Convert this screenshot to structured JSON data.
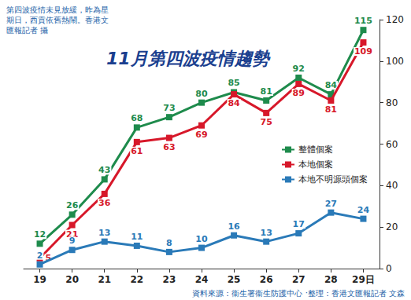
{
  "chart_data": {
    "type": "line",
    "title": "11月第四波疫情趨勢",
    "caption": "第四波疫情未見放緩，昨為星期日，西貢依舊熱鬧。香港文匯報記者 攝",
    "source": "資料來源：衞生署衞生防護中心 ‧整理：香港文匯報記者 文森",
    "categories": [
      "19",
      "20",
      "21",
      "22",
      "23",
      "24",
      "25",
      "26",
      "27",
      "28",
      "29日"
    ],
    "series": [
      {
        "name": "整體個案",
        "color": "#1e8b4c",
        "marker": "square",
        "values": [
          12,
          26,
          43,
          68,
          73,
          80,
          85,
          81,
          92,
          84,
          115
        ]
      },
      {
        "name": "本地個案",
        "color": "#d7182a",
        "marker": "square",
        "values": [
          5,
          21,
          36,
          61,
          63,
          69,
          84,
          75,
          89,
          81,
          109
        ]
      },
      {
        "name": "本地不明源頭個案",
        "color": "#2a7ab8",
        "marker": "square",
        "values": [
          2,
          9,
          13,
          11,
          8,
          10,
          16,
          13,
          17,
          27,
          24
        ]
      }
    ],
    "ylim": [
      0,
      120
    ],
    "yticks": [
      0,
      20,
      40,
      60,
      80,
      100,
      120
    ],
    "grid": false,
    "legend": "right",
    "data_labels": true
  }
}
